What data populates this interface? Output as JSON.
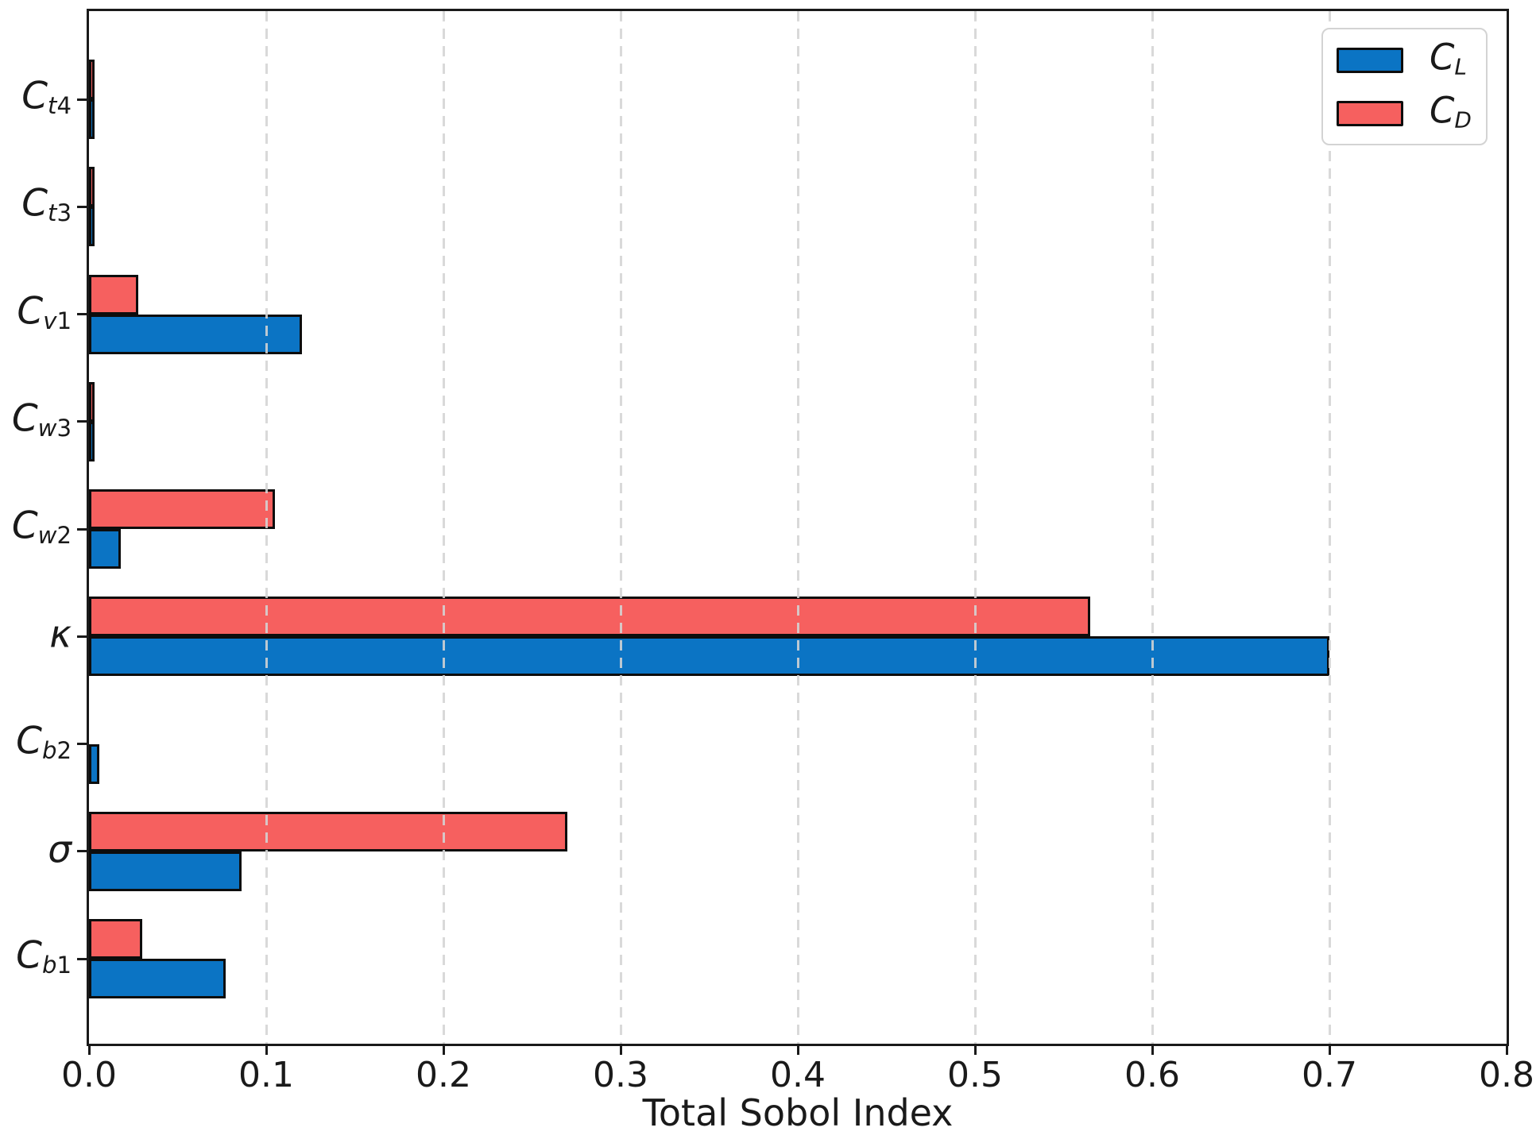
{
  "chart_data": {
    "type": "bar",
    "orientation": "horizontal",
    "title": "",
    "xlabel": "Total Sobol Index",
    "xlim": [
      0.0,
      0.8
    ],
    "xticks": [
      "0.0",
      "0.1",
      "0.2",
      "0.3",
      "0.4",
      "0.5",
      "0.6",
      "0.7",
      "0.8"
    ],
    "grid": {
      "axis": "x",
      "style": "dashed",
      "color": "#d4d4d4",
      "drawn_over_bars": true
    },
    "legend": {
      "position": "upper right"
    },
    "categories": [
      {
        "label": "C_t4",
        "base": "C",
        "sub": "t4"
      },
      {
        "label": "C_t3",
        "base": "C",
        "sub": "t3"
      },
      {
        "label": "C_v1",
        "base": "C",
        "sub": "v1"
      },
      {
        "label": "C_w3",
        "base": "C",
        "sub": "w3"
      },
      {
        "label": "C_w2",
        "base": "C",
        "sub": "w2"
      },
      {
        "label": "κ",
        "base": "κ",
        "sub": ""
      },
      {
        "label": "C_b2",
        "base": "C",
        "sub": "b2"
      },
      {
        "label": "σ",
        "base": "σ",
        "sub": ""
      },
      {
        "label": "C_b1",
        "base": "C",
        "sub": "b1"
      }
    ],
    "series": [
      {
        "name": "C_L",
        "base": "C",
        "sub": "L",
        "color": "#0b74c4",
        "edge_color": "#0d0d0d",
        "offset": "below",
        "values": [
          0.001,
          0.001,
          0.12,
          0.001,
          0.018,
          0.7,
          0.006,
          0.086,
          0.077
        ]
      },
      {
        "name": "C_D",
        "base": "C",
        "sub": "D",
        "color": "#f6605f",
        "edge_color": "#0d0d0d",
        "offset": "above",
        "values": [
          0.001,
          0.001,
          0.028,
          0.001,
          0.105,
          0.565,
          0,
          0.27,
          0.03
        ]
      }
    ]
  }
}
